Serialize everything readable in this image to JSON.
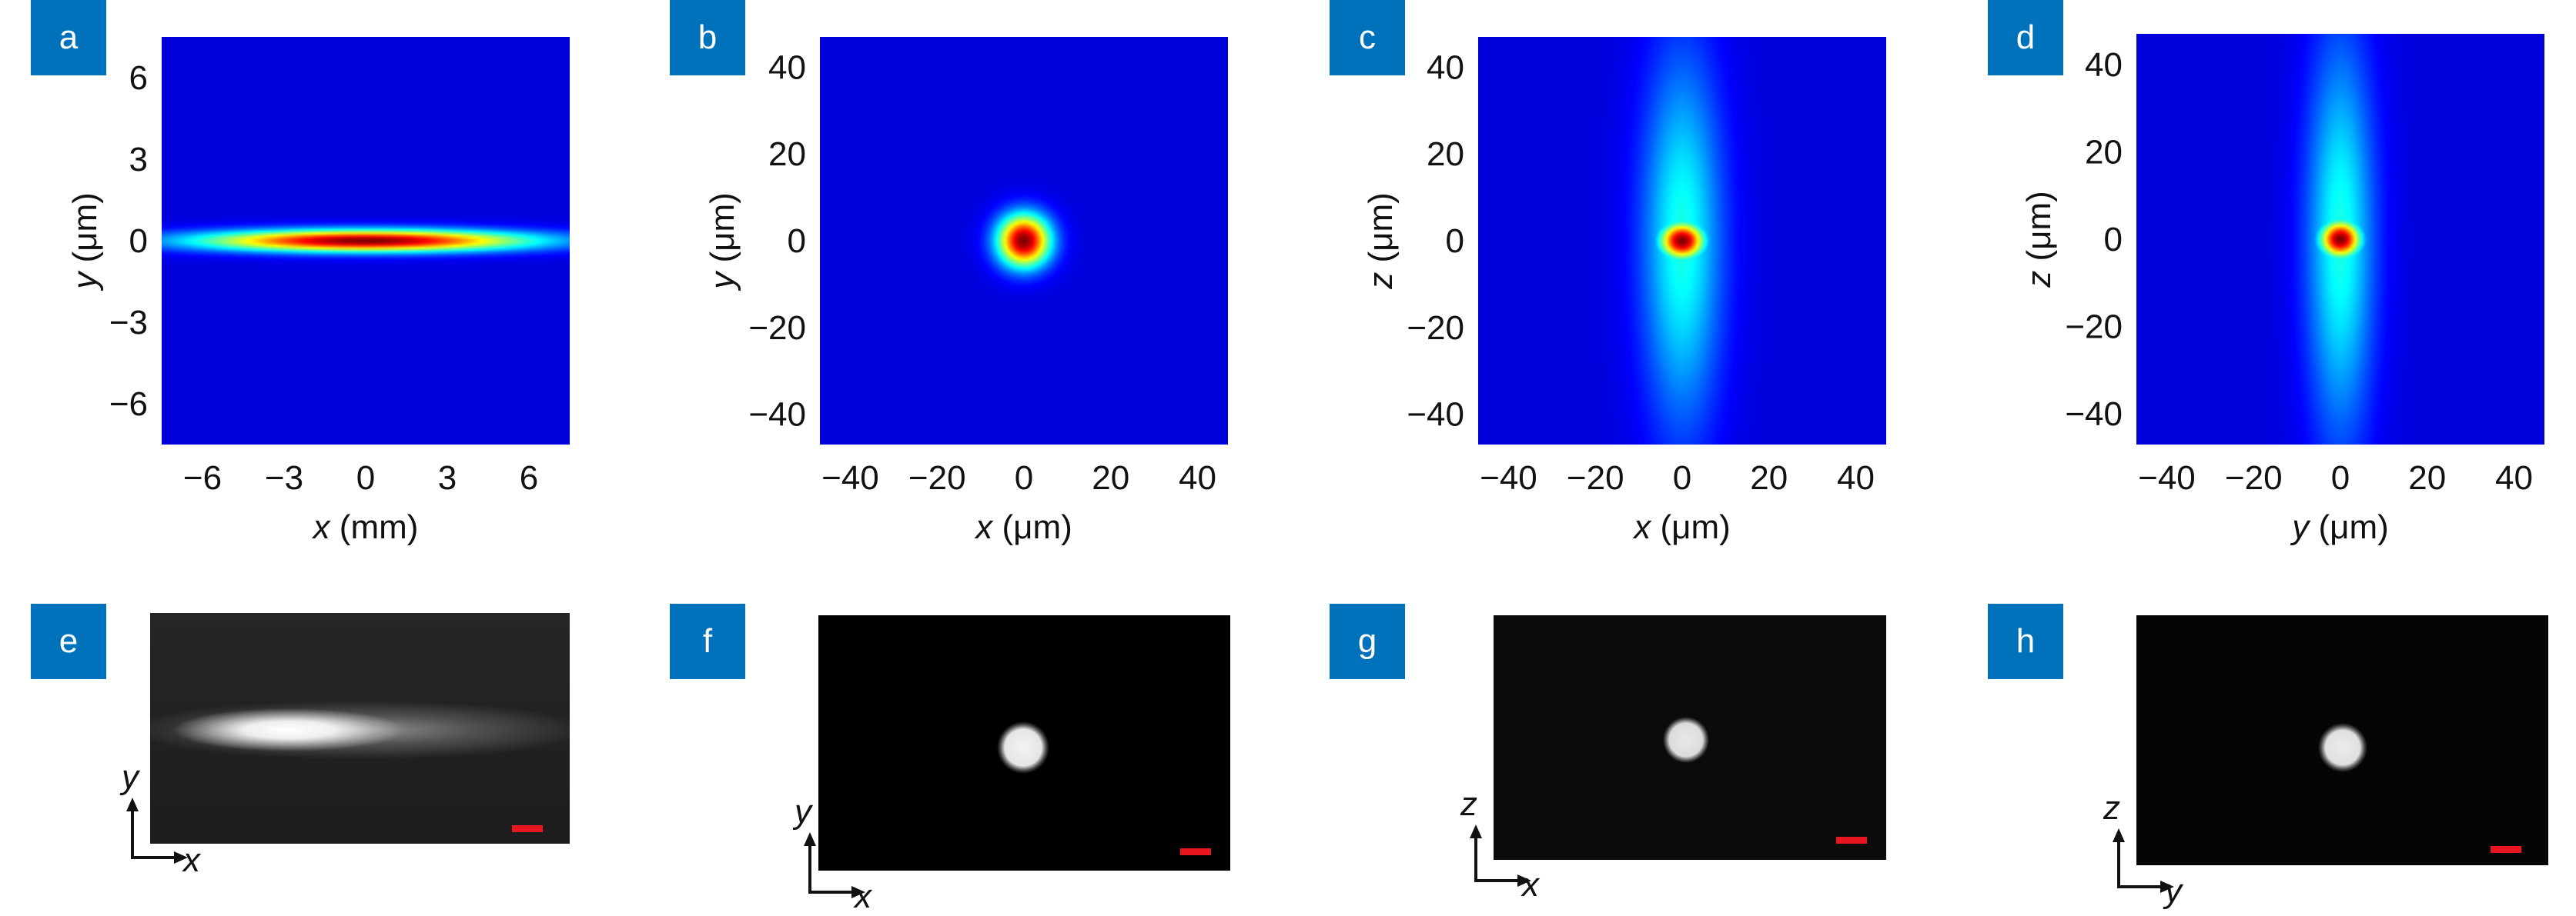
{
  "badges": [
    "a",
    "b",
    "c",
    "d",
    "e",
    "f",
    "g",
    "h"
  ],
  "colors": {
    "badge": "#0072bc",
    "scalebar": "#e8161e"
  },
  "chart_data": [
    {
      "panel": "a",
      "type": "heatmap",
      "xlabel_var": "x",
      "xlabel_unit": " (mm)",
      "ylabel_var": "y",
      "ylabel_unit": " (μm)",
      "xlim": [
        -7.5,
        7.5
      ],
      "ylim": [
        -7.5,
        7.5
      ],
      "xticks": [
        -6,
        -3,
        0,
        3,
        6
      ],
      "xtick_labels": [
        "−6",
        "−3",
        "0",
        "3",
        "6"
      ],
      "yticks": [
        6,
        3,
        0,
        -3,
        -6
      ],
      "ytick_labels": [
        "6",
        "3",
        "0",
        "−3",
        "−6"
      ],
      "spot": {
        "x": 0,
        "y": 0,
        "sx": 4.2,
        "sy": 0.28
      }
    },
    {
      "panel": "b",
      "type": "heatmap",
      "xlabel_var": "x",
      "xlabel_unit": " (μm)",
      "ylabel_var": "y",
      "ylabel_unit": " (μm)",
      "xlim": [
        -47,
        47
      ],
      "ylim": [
        -47,
        47
      ],
      "xticks": [
        -40,
        -20,
        0,
        20,
        40
      ],
      "xtick_labels": [
        "−40",
        "−20",
        "0",
        "20",
        "40"
      ],
      "yticks": [
        40,
        20,
        0,
        -20,
        -40
      ],
      "ytick_labels": [
        "40",
        "20",
        "0",
        "−20",
        "−40"
      ],
      "spot": {
        "x": 0,
        "y": 0,
        "sx": 4.2,
        "sy": 4.2
      }
    },
    {
      "panel": "c",
      "type": "heatmap",
      "xlabel_var": "x",
      "xlabel_unit": " (μm)",
      "ylabel_var": "z",
      "ylabel_unit": " (μm)",
      "xlim": [
        -47,
        47
      ],
      "ylim": [
        -47,
        47
      ],
      "xticks": [
        -40,
        -20,
        0,
        20,
        40
      ],
      "xtick_labels": [
        "−40",
        "−20",
        "0",
        "20",
        "40"
      ],
      "yticks": [
        40,
        20,
        0,
        -20,
        -40
      ],
      "ytick_labels": [
        "40",
        "20",
        "0",
        "−20",
        "−40"
      ],
      "spot": {
        "x": 0,
        "y": 0,
        "sx": 3.6,
        "sy": 3.0,
        "halo_sx": 6.5,
        "halo_sy": 30
      }
    },
    {
      "panel": "d",
      "type": "heatmap",
      "xlabel_var": "y",
      "xlabel_unit": " (μm)",
      "ylabel_var": "z",
      "ylabel_unit": " (μm)",
      "xlim": [
        -47,
        47
      ],
      "ylim": [
        -47,
        47
      ],
      "xticks": [
        -40,
        -20,
        0,
        20,
        40
      ],
      "xtick_labels": [
        "−40",
        "−20",
        "0",
        "20",
        "40"
      ],
      "yticks": [
        40,
        20,
        0,
        -20,
        -40
      ],
      "ytick_labels": [
        "40",
        "20",
        "0",
        "−20",
        "−40"
      ],
      "spot": {
        "x": 0,
        "y": 0,
        "sx": 3.3,
        "sy": 3.0,
        "halo_sx": 5.5,
        "halo_sy": 32
      }
    }
  ],
  "photos": [
    {
      "panel": "e",
      "axis_v": "y",
      "axis_h": "x"
    },
    {
      "panel": "f",
      "axis_v": "y",
      "axis_h": "x"
    },
    {
      "panel": "g",
      "axis_v": "z",
      "axis_h": "x"
    },
    {
      "panel": "h",
      "axis_v": "z",
      "axis_h": "y"
    }
  ]
}
